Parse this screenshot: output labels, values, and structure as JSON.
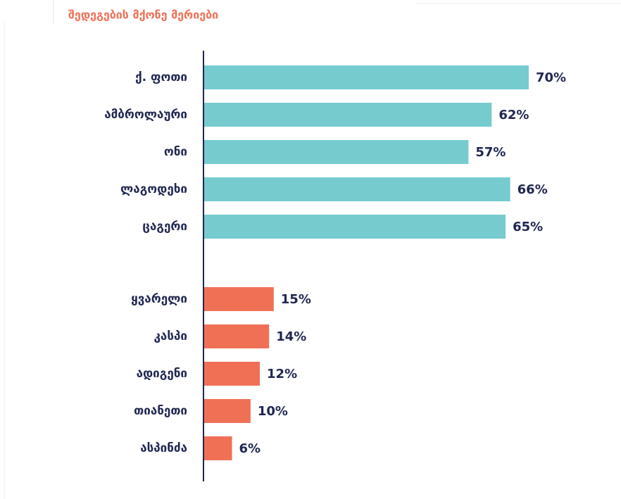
{
  "chart_data": {
    "type": "bar",
    "orientation": "horizontal",
    "title": "შედეგების მქონე მერიები",
    "groups": [
      {
        "color": "#76cbcf",
        "categories": [
          "ქ. ფოთი",
          "ამბროლაური",
          "ონი",
          "ლაგოდეხი",
          "ცაგერი"
        ],
        "values": [
          70,
          62,
          57,
          66,
          65
        ],
        "value_labels": [
          "70%",
          "62%",
          "57%",
          "66%",
          "65%"
        ]
      },
      {
        "color": "#f07056",
        "categories": [
          "ყვარელი",
          "კასპი",
          "ადიგენი",
          "თიანეთი",
          "ასპინძა"
        ],
        "values": [
          15,
          14,
          12,
          10,
          6
        ],
        "value_labels": [
          "15%",
          "14%",
          "12%",
          "10%",
          "6%"
        ]
      }
    ]
  }
}
